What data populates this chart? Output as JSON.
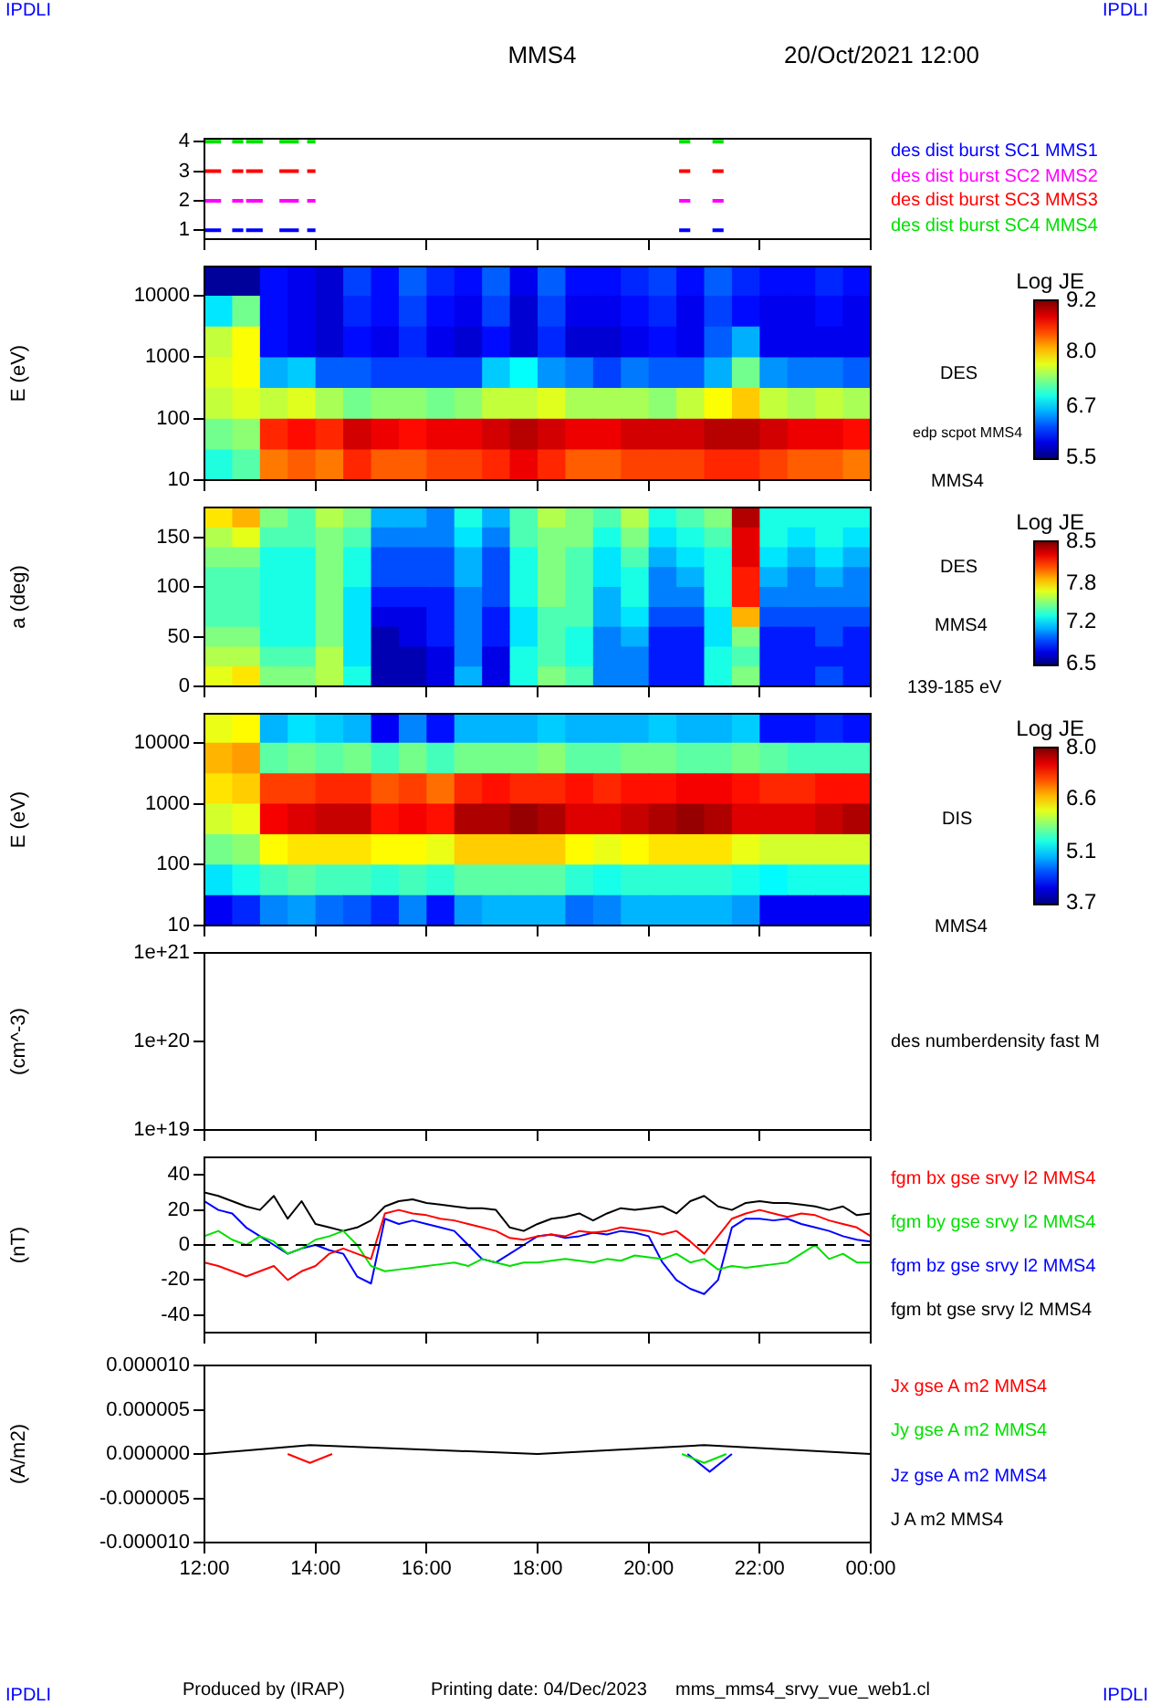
{
  "chart_data": [
    {
      "type": "line",
      "title": "MMS4",
      "subtitle": "20/Oct/2021 12:00",
      "annotations": [
        "IPDLI",
        "IPDLI"
      ],
      "legend": "right",
      "tick_labels": "y",
      "xlim": [
        12,
        24
      ],
      "xticks": [
        12,
        14,
        16,
        18,
        20,
        22,
        24
      ],
      "ylim": [
        0.7,
        4.1
      ],
      "yticks": [
        1,
        2,
        3,
        4
      ],
      "x": [
        12.0,
        12.3,
        null,
        12.5,
        12.7,
        null,
        12.75,
        13.05,
        null,
        13.35,
        13.7,
        null,
        13.85,
        14.0,
        null,
        20.55,
        20.75,
        null,
        21.15,
        21.35
      ],
      "series": [
        {
          "name": "des dist burst SC1 MMS1",
          "color": "#0000ff",
          "values": [
            1,
            1,
            null,
            1,
            1,
            null,
            1,
            1,
            null,
            1,
            1,
            null,
            1,
            1,
            null,
            1,
            1,
            null,
            1,
            1
          ]
        },
        {
          "name": "des dist burst SC2 MMS2",
          "color": "#ff00ff",
          "values": [
            2,
            2,
            null,
            2,
            2,
            null,
            2,
            2,
            null,
            2,
            2,
            null,
            2,
            2,
            null,
            2,
            2,
            null,
            2,
            2
          ]
        },
        {
          "name": "des dist burst SC3 MMS3",
          "color": "#ff0000",
          "values": [
            3,
            3,
            null,
            3,
            3,
            null,
            3,
            3,
            null,
            3,
            3,
            null,
            3,
            3,
            null,
            3,
            3,
            null,
            3,
            3
          ]
        },
        {
          "name": "des dist burst SC4 MMS4",
          "color": "#00e000",
          "values": [
            4,
            4,
            null,
            4,
            4,
            null,
            4,
            4,
            null,
            4,
            4,
            null,
            4,
            4,
            null,
            4,
            4,
            null,
            4,
            4
          ]
        }
      ]
    },
    {
      "type": "heatmap",
      "ylabel": "E (eV)",
      "clabel": "Log JE",
      "annotations": [
        "DES",
        "edp scpot MMS4",
        "MMS4"
      ],
      "log": "y",
      "tick_labels": "y",
      "xlim": [
        12,
        24
      ],
      "xticks": [
        12,
        14,
        16,
        18,
        20,
        22,
        24
      ],
      "ylim": [
        10,
        30000
      ],
      "yticks": [
        10,
        100,
        1000,
        10000
      ],
      "clim": [
        5.5,
        9.2
      ],
      "cticks": [
        5.5,
        6.7,
        {
          "value": 8,
          "label": "8.0"
        },
        9.2
      ],
      "x": [
        12.25,
        12.75,
        13.25,
        13.75,
        14.25,
        14.75,
        15.25,
        15.75,
        16.25,
        16.75,
        17.25,
        17.75,
        18.25,
        18.75,
        19.25,
        19.75,
        20.25,
        20.75,
        21.25,
        21.75,
        22.25,
        22.75,
        23.25,
        23.75
      ],
      "y": [
        17783,
        5623,
        1778,
        562,
        178,
        56,
        17.8
      ],
      "cells": [
        [
          5.6,
          5.6,
          6.0,
          5.9,
          5.8,
          6.2,
          6.0,
          6.3,
          6.1,
          6.0,
          6.3,
          5.9,
          6.3,
          6.0,
          6.0,
          6.1,
          6.2,
          6.0,
          6.3,
          6.1,
          6.0,
          6.0,
          6.1,
          6.0
        ],
        [
          6.8,
          7.3,
          6.0,
          5.9,
          5.8,
          6.1,
          6.0,
          6.2,
          6.0,
          5.9,
          6.2,
          5.8,
          6.2,
          5.9,
          5.9,
          6.0,
          6.1,
          5.9,
          6.2,
          6.0,
          5.9,
          5.9,
          6.0,
          5.9
        ],
        [
          7.6,
          7.8,
          6.0,
          5.9,
          5.8,
          6.0,
          5.9,
          6.1,
          5.9,
          5.8,
          6.0,
          5.8,
          6.1,
          5.8,
          5.8,
          5.9,
          6.0,
          5.9,
          6.3,
          6.6,
          5.9,
          5.9,
          5.9,
          5.9
        ],
        [
          7.7,
          7.8,
          6.6,
          6.7,
          6.3,
          6.3,
          6.2,
          6.2,
          6.2,
          6.2,
          6.7,
          6.9,
          6.5,
          6.4,
          6.2,
          6.4,
          6.3,
          6.3,
          6.6,
          7.3,
          6.5,
          6.4,
          6.4,
          6.3
        ],
        [
          7.6,
          7.7,
          7.6,
          7.7,
          7.5,
          7.3,
          7.4,
          7.4,
          7.3,
          7.4,
          7.6,
          7.6,
          7.7,
          7.5,
          7.5,
          7.5,
          7.4,
          7.6,
          7.8,
          8.0,
          7.6,
          7.5,
          7.6,
          7.5
        ],
        [
          7.3,
          7.4,
          8.6,
          8.7,
          8.6,
          8.9,
          8.8,
          8.7,
          8.8,
          8.8,
          8.9,
          9.0,
          8.9,
          8.8,
          8.8,
          8.9,
          8.9,
          8.9,
          9.0,
          9.0,
          8.9,
          8.8,
          8.8,
          8.7
        ],
        [
          7.0,
          7.2,
          8.3,
          8.4,
          8.3,
          8.6,
          8.4,
          8.4,
          8.5,
          8.5,
          8.6,
          8.8,
          8.6,
          8.4,
          8.4,
          8.5,
          8.5,
          8.5,
          8.6,
          8.6,
          8.5,
          8.4,
          8.4,
          8.3
        ]
      ]
    },
    {
      "type": "heatmap",
      "ylabel": "a (deg)",
      "clabel": "Log JE",
      "annotations": [
        "DES",
        "MMS4",
        "139-185 eV"
      ],
      "tick_labels": "y",
      "xlim": [
        12,
        24
      ],
      "xticks": [
        12,
        14,
        16,
        18,
        20,
        22,
        24
      ],
      "ylim": [
        0,
        180
      ],
      "yticks": [
        0,
        50,
        100,
        150
      ],
      "clim": [
        6.5,
        8.5
      ],
      "cticks": [
        6.5,
        7.2,
        7.8,
        8.5
      ],
      "x": [
        12.25,
        12.75,
        13.25,
        13.75,
        14.25,
        14.75,
        15.25,
        15.75,
        16.25,
        16.75,
        17.25,
        17.75,
        18.25,
        18.75,
        19.25,
        19.75,
        20.25,
        20.75,
        21.25,
        21.75,
        22.25,
        22.75,
        23.25,
        23.75
      ],
      "y": [
        170,
        150,
        130,
        110,
        90,
        70,
        50,
        30,
        10
      ],
      "cells": [
        [
          7.8,
          7.9,
          7.5,
          7.4,
          7.6,
          7.5,
          7.1,
          7.1,
          7.0,
          7.3,
          7.1,
          7.4,
          7.6,
          7.5,
          7.4,
          7.6,
          7.3,
          7.4,
          7.5,
          8.4,
          7.3,
          7.3,
          7.3,
          7.3
        ],
        [
          7.6,
          7.7,
          7.4,
          7.4,
          7.5,
          7.4,
          7.0,
          7.0,
          7.0,
          7.2,
          7.0,
          7.4,
          7.5,
          7.5,
          7.3,
          7.5,
          7.2,
          7.3,
          7.4,
          8.3,
          7.3,
          7.2,
          7.3,
          7.2
        ],
        [
          7.5,
          7.5,
          7.3,
          7.3,
          7.5,
          7.3,
          6.9,
          6.9,
          6.9,
          7.1,
          6.9,
          7.3,
          7.5,
          7.4,
          7.2,
          7.4,
          7.1,
          7.2,
          7.3,
          8.3,
          7.2,
          7.1,
          7.2,
          7.1
        ],
        [
          7.4,
          7.4,
          7.3,
          7.3,
          7.5,
          7.3,
          6.9,
          6.9,
          6.9,
          7.1,
          6.9,
          7.3,
          7.5,
          7.4,
          7.2,
          7.3,
          7.0,
          7.1,
          7.3,
          8.2,
          7.1,
          7.0,
          7.1,
          7.0
        ],
        [
          7.4,
          7.4,
          7.3,
          7.3,
          7.5,
          7.2,
          6.8,
          6.8,
          6.8,
          7.0,
          6.9,
          7.3,
          7.5,
          7.4,
          7.1,
          7.3,
          7.0,
          7.0,
          7.3,
          8.2,
          7.0,
          7.0,
          7.0,
          7.0
        ],
        [
          7.4,
          7.4,
          7.3,
          7.3,
          7.5,
          7.2,
          6.7,
          6.7,
          6.8,
          7.0,
          6.8,
          7.2,
          7.4,
          7.4,
          7.1,
          7.2,
          6.9,
          6.9,
          7.2,
          7.9,
          6.9,
          6.9,
          6.9,
          6.9
        ],
        [
          7.5,
          7.5,
          7.3,
          7.3,
          7.5,
          7.2,
          6.6,
          6.7,
          6.8,
          7.0,
          6.8,
          7.2,
          7.4,
          7.3,
          7.0,
          7.1,
          6.8,
          6.8,
          7.2,
          7.5,
          6.8,
          6.8,
          6.9,
          6.8
        ],
        [
          7.6,
          7.6,
          7.4,
          7.4,
          7.6,
          7.2,
          6.6,
          6.6,
          6.7,
          7.0,
          6.7,
          7.3,
          7.4,
          7.3,
          7.0,
          7.0,
          6.8,
          6.8,
          7.3,
          7.4,
          6.8,
          6.8,
          6.8,
          6.8
        ],
        [
          7.7,
          7.8,
          7.5,
          7.5,
          7.6,
          7.3,
          6.6,
          6.6,
          6.7,
          7.1,
          6.7,
          7.3,
          7.5,
          7.4,
          7.0,
          7.0,
          6.8,
          6.8,
          7.3,
          7.5,
          6.8,
          6.8,
          6.9,
          6.8
        ]
      ]
    },
    {
      "type": "heatmap",
      "ylabel": "E (eV)",
      "clabel": "Log JE",
      "annotations": [
        "DIS",
        "MMS4"
      ],
      "log": "y",
      "tick_labels": "y",
      "xlim": [
        12,
        24
      ],
      "xticks": [
        12,
        14,
        16,
        18,
        20,
        22,
        24
      ],
      "ylim": [
        10,
        30000
      ],
      "yticks": [
        10,
        100,
        1000,
        10000
      ],
      "clim": [
        3.7,
        8.0
      ],
      "cticks": [
        3.7,
        5.1,
        6.6,
        {
          "value": 8,
          "label": "8.0"
        }
      ],
      "x": [
        12.25,
        12.75,
        13.25,
        13.75,
        14.25,
        14.75,
        15.25,
        15.75,
        16.25,
        16.75,
        17.25,
        17.75,
        18.25,
        18.75,
        19.25,
        19.75,
        20.25,
        20.75,
        21.25,
        21.75,
        22.25,
        22.75,
        23.25,
        23.75
      ],
      "y": [
        17783,
        5623,
        1778,
        562,
        178,
        56,
        17.8
      ],
      "cells": [
        [
          6.3,
          6.4,
          5.0,
          5.2,
          5.1,
          5.0,
          4.2,
          4.8,
          4.3,
          5.0,
          5.0,
          5.0,
          5.1,
          5.0,
          5.0,
          5.0,
          5.1,
          5.0,
          5.0,
          5.1,
          4.3,
          4.3,
          4.4,
          4.3
        ],
        [
          6.7,
          6.8,
          5.7,
          5.8,
          5.7,
          5.8,
          5.6,
          5.8,
          5.6,
          5.8,
          5.8,
          5.8,
          5.9,
          5.7,
          5.7,
          5.8,
          5.8,
          5.7,
          5.7,
          5.8,
          5.7,
          5.6,
          5.6,
          5.6
        ],
        [
          6.5,
          6.6,
          7.2,
          7.2,
          7.3,
          7.3,
          7.1,
          7.2,
          7.0,
          7.3,
          7.4,
          7.3,
          7.3,
          7.4,
          7.3,
          7.4,
          7.4,
          7.5,
          7.5,
          7.4,
          7.3,
          7.3,
          7.4,
          7.4
        ],
        [
          6.2,
          6.3,
          7.5,
          7.6,
          7.7,
          7.7,
          7.4,
          7.5,
          7.4,
          7.8,
          7.8,
          7.9,
          7.8,
          7.6,
          7.6,
          7.7,
          7.8,
          7.9,
          7.8,
          7.6,
          7.6,
          7.6,
          7.7,
          7.8
        ],
        [
          5.8,
          5.9,
          6.4,
          6.5,
          6.5,
          6.5,
          6.4,
          6.4,
          6.3,
          6.6,
          6.6,
          6.6,
          6.6,
          6.4,
          6.3,
          6.4,
          6.5,
          6.5,
          6.5,
          6.3,
          6.2,
          6.2,
          6.2,
          6.2
        ],
        [
          5.2,
          5.4,
          5.6,
          5.7,
          5.6,
          5.6,
          5.5,
          5.6,
          5.5,
          5.7,
          5.7,
          5.7,
          5.7,
          5.5,
          5.4,
          5.5,
          5.5,
          5.5,
          5.5,
          5.4,
          5.3,
          5.4,
          5.4,
          5.4
        ],
        [
          4.2,
          4.4,
          4.8,
          4.9,
          4.7,
          4.6,
          4.4,
          4.8,
          4.3,
          4.9,
          5.0,
          5.0,
          5.0,
          4.7,
          4.8,
          5.0,
          5.0,
          5.0,
          5.0,
          4.9,
          4.2,
          4.2,
          4.2,
          4.2
        ]
      ]
    },
    {
      "type": "line",
      "ylabel": "(cm^-3)",
      "log": "y",
      "annotations": [
        "des numberdensity fast M"
      ],
      "tick_labels": "y",
      "xlim": [
        12,
        24
      ],
      "xticks": [
        12,
        14,
        16,
        18,
        20,
        22,
        24
      ],
      "ylim": [
        1e+19,
        1e+21
      ],
      "yticks": [
        {
          "value": 1e+19,
          "label": "1e+19"
        },
        {
          "value": 1e+20,
          "label": "1e+20"
        },
        {
          "value": 1e+21,
          "label": "1e+21"
        }
      ]
    },
    {
      "type": "line",
      "ylabel": "(nT)",
      "legend": "right",
      "tick_labels": "y",
      "xlim": [
        12,
        24
      ],
      "xticks": [
        12,
        14,
        16,
        18,
        20,
        22,
        24
      ],
      "ylim": [
        -50,
        50
      ],
      "yticks": [
        -40,
        -20,
        0,
        20,
        40
      ],
      "ref_lines": [
        {
          "axis": "y",
          "value": 0,
          "color": "#000000",
          "line_style": "dashed"
        }
      ],
      "x": [
        12,
        12.25,
        12.5,
        12.75,
        13,
        13.25,
        13.5,
        13.75,
        14,
        14.25,
        14.5,
        14.75,
        15,
        15.25,
        15.5,
        15.75,
        16,
        16.25,
        16.5,
        16.75,
        17,
        17.25,
        17.5,
        17.75,
        18,
        18.25,
        18.5,
        18.75,
        19,
        19.25,
        19.5,
        19.75,
        20,
        20.25,
        20.5,
        20.75,
        21,
        21.25,
        21.5,
        21.75,
        22,
        22.25,
        22.5,
        22.75,
        23,
        23.25,
        23.5,
        23.75,
        24
      ],
      "series": [
        {
          "name": "fgm bx gse srvy l2 MMS4",
          "color": "#ff0000",
          "values": [
            -10,
            -12,
            -15,
            -18,
            -15,
            -12,
            -20,
            -15,
            -12,
            -5,
            -2,
            -5,
            -8,
            18,
            20,
            18,
            17,
            15,
            14,
            12,
            10,
            8,
            4,
            3,
            5,
            6,
            5,
            8,
            7,
            8,
            10,
            9,
            8,
            6,
            8,
            2,
            -5,
            5,
            15,
            18,
            20,
            18,
            16,
            18,
            17,
            14,
            12,
            10,
            5
          ]
        },
        {
          "name": "fgm by gse srvy l2 MMS4",
          "color": "#00e000",
          "values": [
            5,
            8,
            3,
            0,
            5,
            2,
            -5,
            -2,
            3,
            5,
            8,
            0,
            -12,
            -15,
            -14,
            -13,
            -12,
            -11,
            -10,
            -12,
            -8,
            -10,
            -12,
            -10,
            -10,
            -9,
            -8,
            -9,
            -10,
            -8,
            -9,
            -6,
            -7,
            -8,
            -5,
            -10,
            -8,
            -14,
            -12,
            -13,
            -12,
            -11,
            -10,
            -5,
            0,
            -8,
            -5,
            -10,
            -10
          ]
        },
        {
          "name": "fgm bz gse srvy l2 MMS4",
          "color": "#0000ff",
          "values": [
            25,
            20,
            18,
            10,
            5,
            0,
            -5,
            -2,
            0,
            -3,
            -5,
            -18,
            -22,
            15,
            12,
            14,
            12,
            10,
            8,
            0,
            -8,
            -10,
            -5,
            0,
            5,
            6,
            4,
            5,
            7,
            6,
            8,
            7,
            5,
            -10,
            -20,
            -25,
            -28,
            -20,
            10,
            15,
            15,
            14,
            15,
            12,
            10,
            8,
            5,
            3,
            2
          ]
        },
        {
          "name": "fgm bt gse srvy l2 MMS4",
          "color": "#000000",
          "values": [
            30,
            28,
            25,
            22,
            20,
            28,
            15,
            25,
            12,
            10,
            8,
            10,
            14,
            22,
            25,
            26,
            24,
            23,
            22,
            21,
            21,
            20,
            10,
            8,
            12,
            15,
            16,
            18,
            14,
            18,
            21,
            20,
            21,
            22,
            18,
            25,
            28,
            22,
            20,
            24,
            25,
            24,
            24,
            23,
            22,
            20,
            22,
            17,
            18
          ]
        }
      ]
    },
    {
      "type": "line",
      "ylabel": "(A/m2)",
      "legend": "right",
      "annotations": [
        "Produced by (IRAP)",
        "Printing date: 04/Dec/2023",
        "mms_mms4_srvy_vue_web1.cl",
        "IPDLI",
        "IPDLI"
      ],
      "xlim": [
        12,
        24
      ],
      "xticks": [
        {
          "value": 12,
          "label": "12:00"
        },
        {
          "value": 14,
          "label": "14:00"
        },
        {
          "value": 16,
          "label": "16:00"
        },
        {
          "value": 18,
          "label": "18:00"
        },
        {
          "value": 20,
          "label": "20:00"
        },
        {
          "value": 22,
          "label": "22:00"
        },
        {
          "value": 24,
          "label": "00:00"
        }
      ],
      "ylim": [
        -1e-05,
        1e-05
      ],
      "yticks": [
        {
          "value": -1e-05,
          "label": "-0.000010"
        },
        {
          "value": -5e-06,
          "label": "-0.000005"
        },
        {
          "value": 0,
          "label": "0.000000"
        },
        {
          "value": 5e-06,
          "label": "0.000005"
        },
        {
          "value": 1e-05,
          "label": "0.000010"
        }
      ],
      "series": [
        {
          "name": "Jx gse A m2 MMS4",
          "color": "#ff0000",
          "x": [
            13.5,
            13.9,
            14.3
          ],
          "values": [
            0,
            -1e-06,
            0
          ]
        },
        {
          "name": "Jy gse A m2 MMS4",
          "color": "#00e000",
          "x": [
            20.6,
            21,
            21.4
          ],
          "values": [
            0,
            -1e-06,
            0
          ]
        },
        {
          "name": "Jz gse A m2 MMS4",
          "color": "#0000ff",
          "x": [
            20.7,
            21.1,
            21.5
          ],
          "values": [
            0,
            -2e-06,
            0
          ]
        },
        {
          "name": "J A m2 MMS4",
          "color": "#000000",
          "x": [
            12,
            13.9,
            18,
            21,
            24
          ],
          "values": [
            0,
            1e-06,
            0,
            1e-06,
            0
          ]
        }
      ]
    }
  ]
}
